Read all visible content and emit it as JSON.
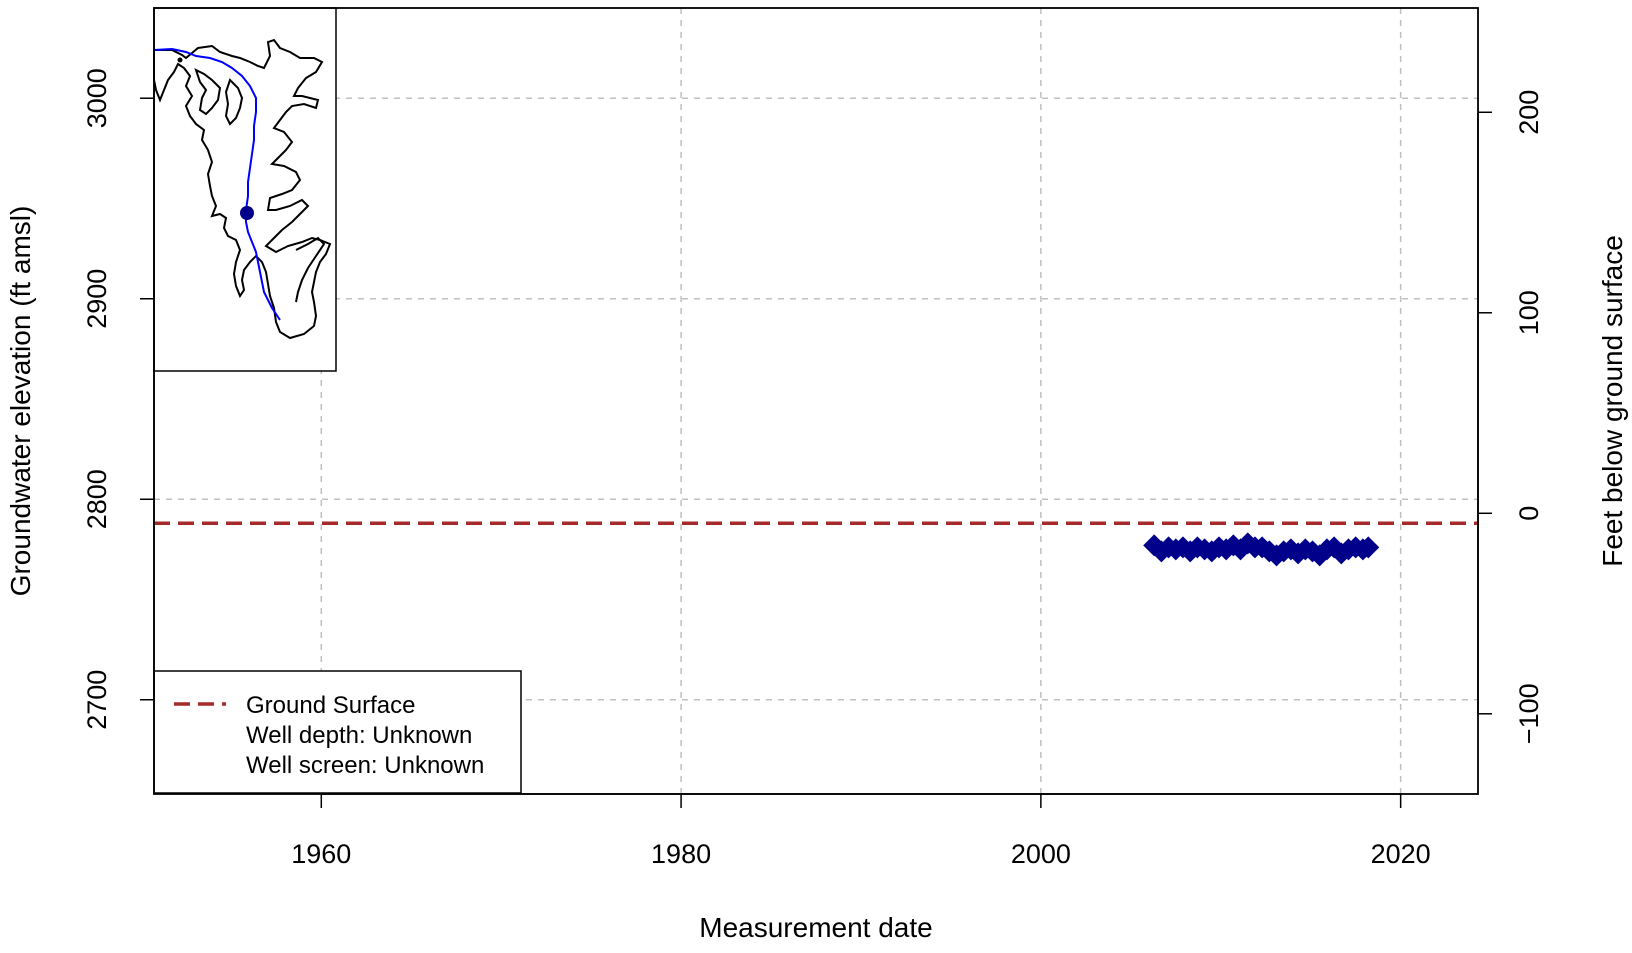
{
  "chart_data": {
    "type": "scatter",
    "xlabel": "Measurement date",
    "ylabel": "Groundwater elevation (ft amsl)",
    "ylabel_right": "Feet below ground surface",
    "xlim": [
      1950.7,
      2024.3
    ],
    "ylim": [
      2653,
      3045
    ],
    "ylim_right": [
      -140,
      252
    ],
    "x_ticks": [
      1960,
      1980,
      2000,
      2020
    ],
    "y_ticks": [
      2700,
      2800,
      2900,
      3000
    ],
    "y_ticks_right": [
      -100,
      0,
      100,
      200
    ],
    "grid": true,
    "ground_surface_elevation": 2788,
    "ground_surface_color": "#A52A2A",
    "marker_color": "#00008B",
    "marker": "diamond",
    "series": [
      {
        "x": [
          2006.3,
          2006.7,
          2007.1,
          2007.5,
          2007.9,
          2008.3,
          2008.7,
          2009.1,
          2009.5,
          2009.9,
          2010.3,
          2010.7,
          2011.1,
          2011.5,
          2011.9,
          2012.3,
          2012.7,
          2013.1,
          2013.5,
          2013.9,
          2014.3,
          2014.7,
          2015.1,
          2015.5,
          2015.9,
          2016.3,
          2016.7,
          2017.1,
          2017.5,
          2017.9,
          2018.2
        ],
        "y": [
          2777,
          2774,
          2776,
          2775,
          2776,
          2774,
          2776,
          2775,
          2774,
          2776,
          2775,
          2777,
          2775,
          2778,
          2776,
          2776,
          2774,
          2772,
          2774,
          2775,
          2773,
          2775,
          2774,
          2772,
          2775,
          2776,
          2773,
          2775,
          2776,
          2775,
          2776
        ]
      }
    ],
    "legend": {
      "position": "bottom-left",
      "items": [
        "Ground Surface",
        "Well depth: Unknown",
        "Well screen: Unknown"
      ]
    },
    "inset_map": {
      "position": "top-left",
      "outline_color": "#000000",
      "river_color": "#0000FF",
      "well_marker_color": "#00008B"
    }
  }
}
